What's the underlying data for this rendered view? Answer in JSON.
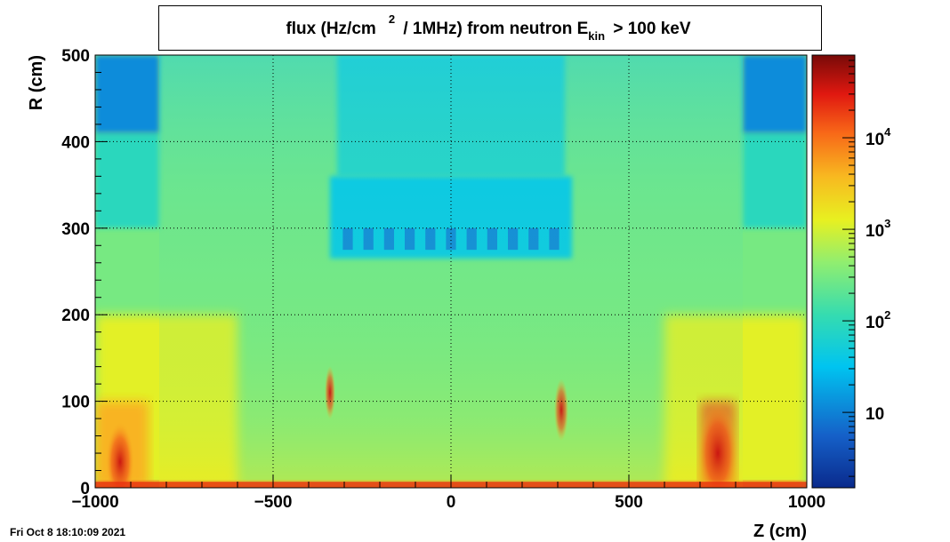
{
  "chart_data": {
    "type": "heatmap",
    "title": {
      "part1": "flux (Hz/cm",
      "sup": "2",
      "part2": " / 1MHz) from   neutron  E",
      "sub": "kin",
      "part3": " > 100 keV"
    },
    "xlabel": "Z (cm)",
    "ylabel": "R (cm)",
    "xlim": [
      -1000,
      1000
    ],
    "ylim": [
      0,
      500
    ],
    "x_ticks": [
      {
        "value": -1000,
        "label": "−1000"
      },
      {
        "value": -500,
        "label": "−500"
      },
      {
        "value": 0,
        "label": "0"
      },
      {
        "value": 500,
        "label": "500"
      },
      {
        "value": 1000,
        "label": "1000"
      }
    ],
    "y_ticks": [
      {
        "value": 0,
        "label": "0"
      },
      {
        "value": 100,
        "label": "100"
      },
      {
        "value": 200,
        "label": "200"
      },
      {
        "value": 300,
        "label": "300"
      },
      {
        "value": 400,
        "label": "400"
      },
      {
        "value": 500,
        "label": "500"
      }
    ],
    "grid": true,
    "colorbar": {
      "scale": "log",
      "range": [
        1.5,
        80000
      ],
      "ticks": [
        {
          "value": 10,
          "base": "10",
          "exp": ""
        },
        {
          "value": 100,
          "base": "10",
          "exp": "2"
        },
        {
          "value": 1000,
          "base": "10",
          "exp": "3"
        },
        {
          "value": 10000,
          "base": "10",
          "exp": "4"
        }
      ]
    },
    "regions": [
      {
        "z": [
          -1000,
          1000
        ],
        "r": [
          0,
          500
        ],
        "flux": 300
      },
      {
        "z": [
          -1000,
          -820
        ],
        "r": [
          300,
          410
        ],
        "flux": 90
      },
      {
        "z": [
          820,
          1000
        ],
        "r": [
          300,
          410
        ],
        "flux": 90
      },
      {
        "z": [
          -1000,
          -820
        ],
        "r": [
          410,
          500
        ],
        "flux": 12
      },
      {
        "z": [
          820,
          1000
        ],
        "r": [
          410,
          500
        ],
        "flux": 12
      },
      {
        "z": [
          -320,
          320
        ],
        "r": [
          360,
          500
        ],
        "flux": 70
      },
      {
        "z": [
          -340,
          340
        ],
        "r": [
          265,
          360
        ],
        "flux": 35
      },
      {
        "z": [
          -1000,
          -600
        ],
        "r": [
          0,
          200
        ],
        "flux": 1200
      },
      {
        "z": [
          600,
          1000
        ],
        "r": [
          0,
          200
        ],
        "flux": 1200
      },
      {
        "z": [
          -1000,
          -850
        ],
        "r": [
          0,
          100
        ],
        "flux": 4000
      },
      {
        "z": [
          700,
          800
        ],
        "r": [
          0,
          100
        ],
        "flux": 15000
      },
      {
        "z": [
          -1000,
          1000
        ],
        "r": [
          0,
          8
        ],
        "flux": 9000
      }
    ]
  },
  "footer": {
    "timestamp": "Fri Oct  8 18:10:09 2021"
  }
}
